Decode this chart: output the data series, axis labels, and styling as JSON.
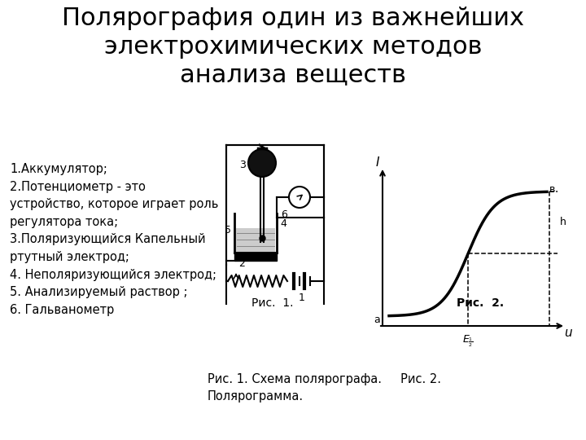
{
  "title": "Полярография один из важнейших\nэлектрохимических методов\nанализа веществ",
  "title_fontsize": 22,
  "bg_color": "#ffffff",
  "text_color": "#000000",
  "bullet_text": "1.Аккумулятор;\n2.Потенциометр - это\nустройство, которое играет роль\nрегулятора тока;\n3.Поляризующийся Капельный\nртутный электрод;\n4. Неполяризующийся электрод;\n5. Анализируемый раствор ;\n6. Гальванометр",
  "bullet_fontsize": 10.5,
  "caption_text": "Рис. 1. Схема полярографа.     Рис. 2.\nПолярограмма.",
  "caption_fontsize": 10.5,
  "fig1_caption": "Рис.  1.",
  "fig2_caption": "Рис.  2."
}
